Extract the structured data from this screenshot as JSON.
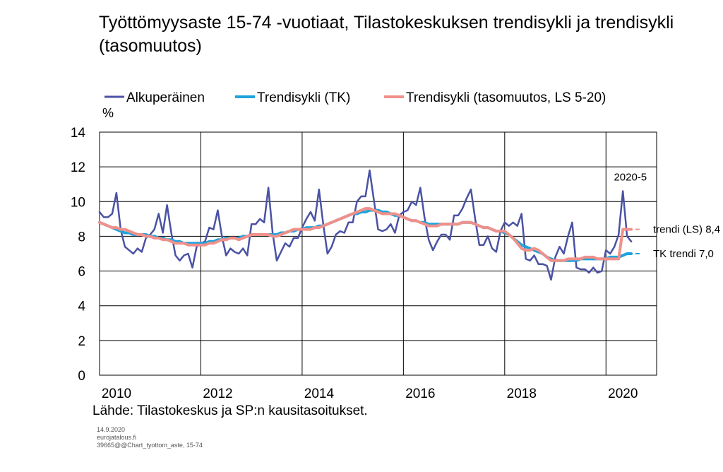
{
  "title": "Työttömyysaste 15-74 -vuotiaat, Tilastokeskuksen trendisykli ja trendisykli (tasomuutos)",
  "source": "Lähde:  Tilastokeskus  ja SP:n kausitasoitukset.",
  "meta": {
    "date": "14.9.2020",
    "site": "eurojatalous.fi",
    "file": "39665@@Chart_tyottom_aste, 15-74"
  },
  "chart_data": {
    "type": "line",
    "ylabel": "%",
    "ylim": [
      0,
      14
    ],
    "yticks": [
      0,
      2,
      4,
      6,
      8,
      10,
      12,
      14
    ],
    "xlim": [
      2010.0,
      2021.0
    ],
    "xticks": [
      2010,
      2012,
      2014,
      2016,
      2018,
      2020
    ],
    "xtick_labels": [
      "2010",
      "2012",
      "2014",
      "2016",
      "2018",
      "2020"
    ],
    "grid": true,
    "legend_position": "top",
    "series": [
      {
        "name": "Alkuperäinen",
        "color": "#4a52a4",
        "x_start": 2010.0,
        "x_step": 0.08333,
        "values": [
          9.4,
          9.1,
          9.1,
          9.3,
          10.5,
          8.4,
          7.4,
          7.2,
          7.0,
          7.3,
          7.1,
          7.9,
          8.1,
          8.4,
          9.3,
          8.2,
          9.8,
          8.2,
          6.9,
          6.6,
          6.9,
          7.0,
          6.2,
          7.4,
          7.6,
          7.7,
          8.5,
          8.4,
          9.5,
          8.0,
          6.9,
          7.3,
          7.1,
          7.0,
          7.3,
          6.9,
          8.7,
          8.7,
          9.0,
          8.8,
          10.8,
          8.2,
          6.6,
          7.1,
          7.6,
          7.4,
          7.9,
          7.9,
          8.5,
          9.0,
          9.4,
          8.9,
          10.7,
          8.7,
          7.0,
          7.4,
          8.1,
          8.3,
          8.2,
          8.8,
          8.8,
          10.0,
          10.3,
          10.3,
          11.8,
          10.1,
          8.4,
          8.3,
          8.4,
          8.7,
          8.2,
          9.2,
          9.4,
          9.5,
          10.0,
          9.8,
          10.8,
          9.1,
          7.8,
          7.2,
          7.7,
          8.1,
          8.1,
          7.8,
          9.2,
          9.2,
          9.6,
          10.2,
          10.7,
          9.0,
          7.5,
          7.5,
          8.0,
          7.3,
          7.1,
          8.3,
          8.8,
          8.6,
          8.8,
          8.6,
          9.3,
          6.7,
          6.6,
          6.9,
          6.4,
          6.4,
          6.3,
          5.5,
          6.8,
          7.4,
          7.0,
          8.0,
          8.8,
          6.2,
          6.1,
          6.1,
          5.9,
          6.2,
          5.9,
          6.0,
          7.2,
          7.0,
          7.4,
          8.1,
          10.6,
          8.0,
          7.7
        ]
      },
      {
        "name": "Trendisykli (TK)",
        "color": "#1fa3dc",
        "x_start": 2010.0,
        "x_step": 0.08333,
        "values": [
          8.8,
          8.7,
          8.6,
          8.5,
          8.4,
          8.3,
          8.2,
          8.2,
          8.1,
          8.1,
          8.1,
          8.1,
          8.0,
          8.0,
          7.9,
          7.9,
          7.8,
          7.8,
          7.7,
          7.7,
          7.6,
          7.6,
          7.6,
          7.6,
          7.6,
          7.6,
          7.7,
          7.7,
          7.8,
          7.8,
          7.9,
          7.9,
          7.9,
          7.9,
          8.0,
          8.0,
          8.1,
          8.1,
          8.1,
          8.1,
          8.1,
          8.1,
          8.1,
          8.2,
          8.2,
          8.3,
          8.3,
          8.4,
          8.4,
          8.5,
          8.5,
          8.5,
          8.6,
          8.6,
          8.7,
          8.8,
          8.9,
          9.0,
          9.1,
          9.2,
          9.3,
          9.3,
          9.4,
          9.4,
          9.5,
          9.5,
          9.5,
          9.4,
          9.4,
          9.3,
          9.2,
          9.2,
          9.1,
          9.0,
          8.9,
          8.9,
          8.8,
          8.8,
          8.7,
          8.7,
          8.7,
          8.7,
          8.7,
          8.7,
          8.7,
          8.7,
          8.8,
          8.8,
          8.8,
          8.7,
          8.6,
          8.5,
          8.5,
          8.4,
          8.3,
          8.3,
          8.2,
          8.1,
          7.9,
          7.7,
          7.5,
          7.4,
          7.3,
          7.2,
          7.1,
          7.0,
          6.8,
          6.7,
          6.6,
          6.6,
          6.6,
          6.6,
          6.6,
          6.6,
          6.7,
          6.7,
          6.7,
          6.7,
          6.7,
          6.7,
          6.7,
          6.8,
          6.8,
          6.8,
          6.9,
          7.0,
          7.0
        ]
      },
      {
        "name": "Trendisykli (tasomuutos, LS 5-20)",
        "color": "#f0908a",
        "x_start": 2010.0,
        "x_step": 0.08333,
        "values": [
          8.8,
          8.7,
          8.6,
          8.5,
          8.5,
          8.4,
          8.4,
          8.3,
          8.2,
          8.1,
          8.1,
          8.0,
          8.0,
          7.9,
          7.9,
          7.8,
          7.8,
          7.7,
          7.6,
          7.6,
          7.6,
          7.5,
          7.5,
          7.5,
          7.5,
          7.5,
          7.6,
          7.6,
          7.7,
          7.8,
          7.8,
          7.9,
          7.9,
          7.8,
          7.9,
          8.0,
          8.1,
          8.1,
          8.1,
          8.1,
          8.1,
          8.0,
          8.0,
          8.1,
          8.2,
          8.3,
          8.4,
          8.4,
          8.4,
          8.4,
          8.4,
          8.5,
          8.5,
          8.6,
          8.7,
          8.8,
          8.9,
          9.0,
          9.1,
          9.2,
          9.3,
          9.4,
          9.5,
          9.6,
          9.6,
          9.5,
          9.4,
          9.3,
          9.3,
          9.3,
          9.3,
          9.2,
          9.1,
          9.0,
          8.9,
          8.9,
          8.8,
          8.7,
          8.6,
          8.6,
          8.6,
          8.7,
          8.7,
          8.7,
          8.7,
          8.7,
          8.8,
          8.8,
          8.8,
          8.7,
          8.6,
          8.5,
          8.5,
          8.4,
          8.3,
          8.3,
          8.3,
          8.1,
          7.9,
          7.6,
          7.3,
          7.2,
          7.2,
          7.3,
          7.2,
          7.0,
          6.8,
          6.6,
          6.6,
          6.6,
          6.6,
          6.7,
          6.7,
          6.7,
          6.7,
          6.8,
          6.8,
          6.8,
          6.7,
          6.7,
          6.7,
          6.7,
          6.7,
          6.7,
          8.4,
          8.4,
          8.4
        ]
      }
    ],
    "annotations": [
      {
        "text": "2020-5",
        "x": 2020.37,
        "y": 10.6
      },
      {
        "text": "trendi (LS) 8,4",
        "x": 2020.58,
        "y": 8.4,
        "color": "#f0908a"
      },
      {
        "text": "TK trendi 7,0",
        "x": 2020.58,
        "y": 7.0,
        "color": "#1fa3dc"
      }
    ]
  }
}
